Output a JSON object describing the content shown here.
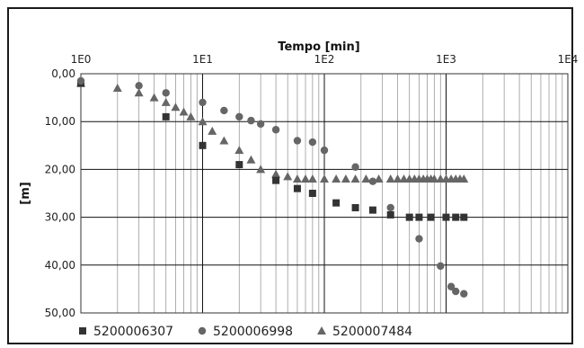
{
  "chart_data": {
    "type": "scatter",
    "title": "Tempo [min]",
    "xlabel": "Tempo [min]",
    "ylabel": "[m]",
    "x_scale": "log",
    "x_ticks": [
      "1E0",
      "1E1",
      "1E2",
      "1E3",
      "1E4"
    ],
    "y_ticks": [
      "0,00",
      "10,00",
      "20,00",
      "30,00",
      "40,00",
      "50,00"
    ],
    "ylim": [
      0,
      50
    ],
    "y_inverted": true,
    "grid": true,
    "legend_position": "bottom",
    "series": [
      {
        "name": "5200006307",
        "marker": "square",
        "color": "#333333",
        "points": [
          [
            1,
            2
          ],
          [
            5,
            9
          ],
          [
            10,
            15
          ],
          [
            20,
            19
          ],
          [
            40,
            22.3
          ],
          [
            60,
            24
          ],
          [
            80,
            25
          ],
          [
            125,
            27
          ],
          [
            180,
            28
          ],
          [
            250,
            28.5
          ],
          [
            350,
            29.5
          ],
          [
            500,
            30
          ],
          [
            600,
            30
          ],
          [
            750,
            30
          ],
          [
            1000,
            30
          ],
          [
            1200,
            30
          ],
          [
            1400,
            30
          ]
        ]
      },
      {
        "name": "5200006998",
        "marker": "circle",
        "color": "#666666",
        "points": [
          [
            1,
            1.5
          ],
          [
            3,
            2.5
          ],
          [
            5,
            4
          ],
          [
            10,
            6
          ],
          [
            15,
            7.7
          ],
          [
            20,
            9
          ],
          [
            25,
            9.8
          ],
          [
            30,
            10.5
          ],
          [
            40,
            11.7
          ],
          [
            60,
            14
          ],
          [
            80,
            14.3
          ],
          [
            100,
            16
          ],
          [
            180,
            19.5
          ],
          [
            250,
            22.5
          ],
          [
            350,
            28
          ],
          [
            600,
            34.5
          ],
          [
            900,
            40.2
          ],
          [
            1100,
            44.5
          ],
          [
            1200,
            45.5
          ],
          [
            1400,
            46
          ]
        ]
      },
      {
        "name": "5200007484",
        "marker": "triangle",
        "color": "#666666",
        "points": [
          [
            1,
            2
          ],
          [
            2,
            3
          ],
          [
            3,
            4
          ],
          [
            4,
            5
          ],
          [
            5,
            6
          ],
          [
            6,
            7
          ],
          [
            7,
            8
          ],
          [
            8,
            9
          ],
          [
            10,
            10
          ],
          [
            12,
            12
          ],
          [
            15,
            14
          ],
          [
            20,
            16
          ],
          [
            25,
            18
          ],
          [
            30,
            20
          ],
          [
            40,
            21
          ],
          [
            50,
            21.5
          ],
          [
            60,
            22
          ],
          [
            70,
            22
          ],
          [
            80,
            22
          ],
          [
            100,
            22
          ],
          [
            125,
            22
          ],
          [
            150,
            22
          ],
          [
            180,
            22
          ],
          [
            220,
            22
          ],
          [
            280,
            22
          ],
          [
            350,
            22
          ],
          [
            400,
            22
          ],
          [
            450,
            22
          ],
          [
            500,
            22
          ],
          [
            550,
            22
          ],
          [
            600,
            22
          ],
          [
            650,
            22
          ],
          [
            700,
            22
          ],
          [
            750,
            22
          ],
          [
            800,
            22
          ],
          [
            900,
            22
          ],
          [
            1000,
            22
          ],
          [
            1100,
            22
          ],
          [
            1200,
            22
          ],
          [
            1300,
            22
          ],
          [
            1400,
            22
          ]
        ]
      }
    ]
  }
}
